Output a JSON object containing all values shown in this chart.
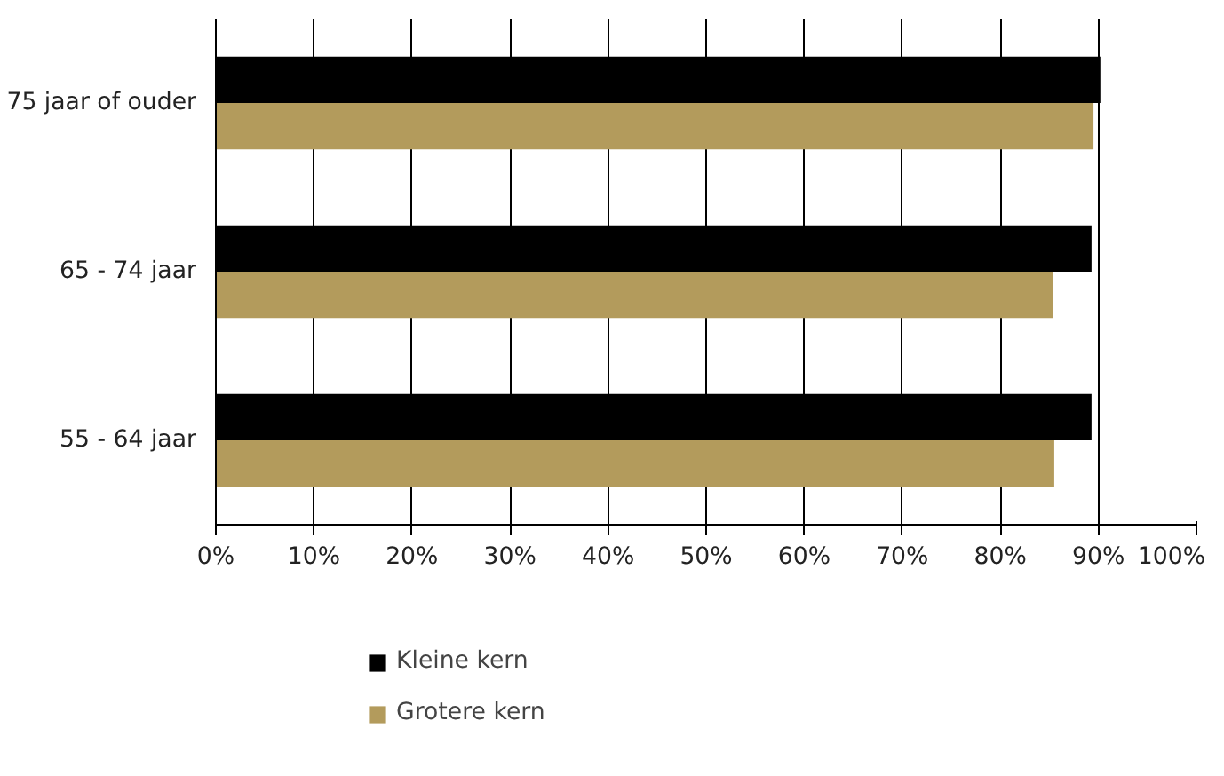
{
  "chart_data": {
    "type": "bar",
    "orientation": "horizontal",
    "categories": [
      "75 jaar of ouder",
      "65 - 74 jaar",
      "55 - 64 jaar"
    ],
    "series": [
      {
        "name": "Kleine kern",
        "color": "#000000",
        "values": [
          90.2,
          89.3,
          89.3
        ]
      },
      {
        "name": "Grotere kern",
        "color": "#b39b5c",
        "values": [
          89.5,
          85.4,
          85.5
        ]
      }
    ],
    "xlim": [
      0,
      100
    ],
    "xticks": [
      {
        "value": 0,
        "label": "0%"
      },
      {
        "value": 10,
        "label": "10%"
      },
      {
        "value": 20,
        "label": "20%"
      },
      {
        "value": 30,
        "label": "30%"
      },
      {
        "value": 40,
        "label": "40%"
      },
      {
        "value": 50,
        "label": "50%"
      },
      {
        "value": 60,
        "label": "60%"
      },
      {
        "value": 70,
        "label": "70%"
      },
      {
        "value": 80,
        "label": "80%"
      },
      {
        "value": 90,
        "label": "90%"
      },
      {
        "value": 100,
        "label": "100%"
      }
    ],
    "grid": "x",
    "legend": "bottom"
  }
}
